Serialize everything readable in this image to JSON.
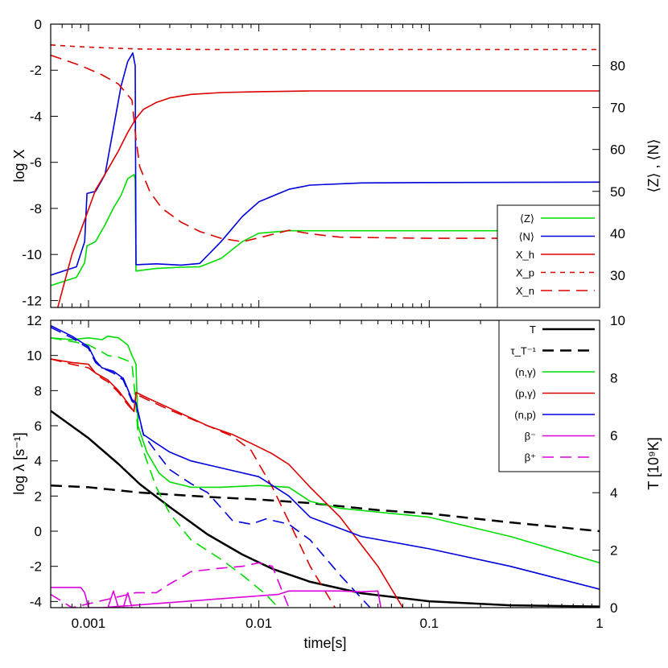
{
  "chart_data": [
    {
      "type": "line",
      "panel": "top",
      "xscale": "log",
      "xlim": [
        0.0006,
        1
      ],
      "x_ticks": [
        0.001,
        0.01,
        0.1,
        1
      ],
      "x_tick_labels": [
        "0.001",
        "0.01",
        "0.1",
        "1"
      ],
      "ylabel": "log X",
      "ylim": [
        -12.3,
        0
      ],
      "y_ticks": [
        0,
        -2,
        -4,
        -6,
        -8,
        -10,
        -12
      ],
      "y_tick_labels": [
        "0",
        "-2",
        "-4",
        "-6",
        "-8",
        "-10",
        "-12"
      ],
      "y2label": "⟨Z⟩ , ⟨N⟩",
      "y2lim": [
        22.3,
        89.9
      ],
      "y2_ticks": [
        30,
        40,
        50,
        60,
        70,
        80
      ],
      "y2_tick_labels": [
        "30",
        "40",
        "50",
        "60",
        "70",
        "80"
      ],
      "legend_position": "bottom-right",
      "series": [
        {
          "key": "Z",
          "name": "⟨Z⟩",
          "axis": "right",
          "color": "#00dd00",
          "dash": "solid",
          "x": [
            0.0006,
            0.00085,
            0.00095,
            0.00098,
            0.0011,
            0.00125,
            0.0014,
            0.00155,
            0.0017,
            0.00185,
            0.00188,
            0.0019,
            0.0025,
            0.0035,
            0.0045,
            0.006,
            0.008,
            0.01,
            0.015,
            0.03,
            0.1,
            1
          ],
          "y": [
            27.5,
            29.5,
            33,
            37,
            38,
            42,
            46,
            49,
            53,
            54,
            53,
            31,
            31.6,
            31.9,
            32,
            34,
            38,
            40,
            40.6,
            40.6,
            40.6,
            40.6
          ]
        },
        {
          "key": "N",
          "name": "⟨N⟩",
          "axis": "right",
          "color": "#0000dd",
          "dash": "solid",
          "x": [
            0.0006,
            0.00085,
            0.00095,
            0.00098,
            0.0011,
            0.00125,
            0.0014,
            0.00155,
            0.0017,
            0.00182,
            0.00188,
            0.0019,
            0.0025,
            0.0035,
            0.0045,
            0.006,
            0.008,
            0.01,
            0.015,
            0.02,
            0.04,
            0.1,
            1
          ],
          "y": [
            30,
            32,
            38,
            49.5,
            50,
            54,
            65,
            75,
            81,
            83,
            80,
            32.5,
            32.7,
            32.4,
            32.8,
            38,
            44,
            47.5,
            50.5,
            51.5,
            52,
            52.1,
            52.2
          ]
        },
        {
          "key": "Xh",
          "name": "X_h",
          "axis": "left",
          "color": "#dd0000",
          "dash": "solid",
          "x": [
            0.00066,
            0.0008,
            0.00095,
            0.0011,
            0.0013,
            0.0015,
            0.0017,
            0.0019,
            0.0021,
            0.0025,
            0.003,
            0.004,
            0.006,
            0.01,
            0.02,
            0.05,
            0.2,
            1
          ],
          "y": [
            -12.3,
            -10,
            -8.5,
            -7.2,
            -6.3,
            -5.5,
            -4.7,
            -4.1,
            -3.7,
            -3.4,
            -3.2,
            -3.05,
            -2.97,
            -2.93,
            -2.9,
            -2.9,
            -2.9,
            -2.9
          ]
        },
        {
          "key": "Xp",
          "name": "X_p",
          "axis": "left",
          "color": "#dd0000",
          "dash": "short",
          "x": [
            0.0006,
            0.0008,
            0.001,
            0.0015,
            0.002,
            0.005,
            0.01,
            0.1,
            1
          ],
          "y": [
            -0.9,
            -0.96,
            -1.0,
            -1.05,
            -1.08,
            -1.1,
            -1.1,
            -1.1,
            -1.1
          ]
        },
        {
          "key": "Xn",
          "name": "X_n",
          "axis": "left",
          "color": "#dd0000",
          "dash": "long",
          "x": [
            0.0006,
            0.0009,
            0.0012,
            0.0015,
            0.0018,
            0.0019,
            0.002,
            0.0023,
            0.0027,
            0.0035,
            0.0045,
            0.006,
            0.008,
            0.011,
            0.015,
            0.02,
            0.03,
            0.1,
            1
          ],
          "y": [
            -1.35,
            -1.8,
            -2.2,
            -2.6,
            -3.3,
            -5.0,
            -6.2,
            -7.3,
            -8.0,
            -8.6,
            -9.0,
            -9.3,
            -9.45,
            -9.2,
            -8.95,
            -9.1,
            -9.25,
            -9.3,
            -9.3
          ]
        }
      ]
    },
    {
      "type": "line",
      "panel": "bottom",
      "xscale": "log",
      "xlim": [
        0.0006,
        1
      ],
      "x_ticks": [
        0.001,
        0.01,
        0.1,
        1
      ],
      "x_tick_labels": [
        "0.001",
        "0.01",
        "0.1",
        "1"
      ],
      "xlabel": "time[s]",
      "ylabel": "log λ [s⁻¹]",
      "ylim": [
        -4.35,
        12
      ],
      "y_ticks": [
        12,
        10,
        8,
        6,
        4,
        2,
        0,
        -2,
        -4
      ],
      "y_tick_labels": [
        "12",
        "10",
        "8",
        "6",
        "4",
        "2",
        "0",
        "-2",
        "-4"
      ],
      "y2label": "T [10⁹K]",
      "y2lim": [
        0,
        10
      ],
      "y2_ticks": [
        0,
        2,
        4,
        6,
        8,
        10
      ],
      "y2_tick_labels": [
        "0",
        "2",
        "4",
        "6",
        "8",
        "10"
      ],
      "legend_position": "top-right",
      "series": [
        {
          "key": "T",
          "name": "T",
          "axis": "right",
          "color": "#000000",
          "dash": "solid",
          "width": 2.5,
          "x": [
            0.0006,
            0.001,
            0.0015,
            0.002,
            0.003,
            0.005,
            0.008,
            0.012,
            0.02,
            0.04,
            0.1,
            0.3,
            1
          ],
          "y": [
            6.85,
            5.9,
            5.0,
            4.3,
            3.5,
            2.55,
            1.85,
            1.35,
            0.9,
            0.5,
            0.22,
            0.08,
            0.04
          ]
        },
        {
          "key": "tau",
          "name": "τ_T⁻¹",
          "axis": "left",
          "color": "#000000",
          "dash": "long",
          "width": 2.5,
          "x": [
            0.0006,
            0.001,
            0.002,
            0.005,
            0.01,
            0.02,
            0.05,
            0.1,
            0.3,
            1
          ],
          "y": [
            2.6,
            2.5,
            2.2,
            1.95,
            1.8,
            1.6,
            1.2,
            1.0,
            0.5,
            0
          ]
        },
        {
          "key": "ng",
          "name": "(n,γ)",
          "axis": "left",
          "color": "#00dd00",
          "dash": "solid",
          "x": [
            0.0006,
            0.0008,
            0.001,
            0.0012,
            0.0013,
            0.0015,
            0.0017,
            0.0018,
            0.0019,
            0.00195,
            0.0022,
            0.0026,
            0.003,
            0.004,
            0.006,
            0.01,
            0.015,
            0.02,
            0.03,
            0.1,
            0.3,
            1
          ],
          "y": [
            11.0,
            10.9,
            11.0,
            10.9,
            11.1,
            11.0,
            10.6,
            10.0,
            9.5,
            6.0,
            4.5,
            3.3,
            2.8,
            2.5,
            2.5,
            2.6,
            2.5,
            1.7,
            1.3,
            0.8,
            -0.3,
            -1.8
          ]
        },
        {
          "key": "ng_d",
          "name": "(n,γ) dashed",
          "axis": "left",
          "color": "#00dd00",
          "dash": "long",
          "legend": false,
          "x": [
            0.0006,
            0.0008,
            0.001,
            0.0012,
            0.0013,
            0.0015,
            0.0017,
            0.0018,
            0.0019,
            0.00195,
            0.0022,
            0.0025,
            0.003,
            0.004,
            0.006,
            0.008,
            0.011,
            0.013
          ],
          "y": [
            11.0,
            10.8,
            10.6,
            10.2,
            10.0,
            9.9,
            9.7,
            9.5,
            7.2,
            5.5,
            4.0,
            2.5,
            1.0,
            -0.5,
            -1.6,
            -2.5,
            -3.6,
            -4.35
          ]
        },
        {
          "key": "pg",
          "name": "(p,γ)",
          "axis": "left",
          "color": "#dd0000",
          "dash": "solid",
          "x": [
            0.0006,
            0.0008,
            0.001,
            0.0011,
            0.0012,
            0.0013,
            0.0015,
            0.0017,
            0.00185,
            0.0019,
            0.0022,
            0.003,
            0.005,
            0.007,
            0.009,
            0.012,
            0.015,
            0.02,
            0.03,
            0.05,
            0.07
          ],
          "y": [
            9.8,
            9.6,
            9.5,
            9.0,
            8.8,
            8.6,
            8.0,
            7.3,
            6.8,
            7.9,
            7.6,
            7.0,
            6.0,
            5.5,
            5.0,
            4.4,
            3.8,
            2.5,
            0.8,
            -2.0,
            -4.35
          ]
        },
        {
          "key": "pg_d",
          "name": "(p,γ) dashed",
          "axis": "left",
          "color": "#dd0000",
          "dash": "long",
          "legend": false,
          "x": [
            0.0006,
            0.0008,
            0.001,
            0.0011,
            0.0012,
            0.0013,
            0.0015,
            0.0017,
            0.00185,
            0.0019,
            0.0022,
            0.003,
            0.005,
            0.007,
            0.009,
            0.012,
            0.016,
            0.02,
            0.028
          ],
          "y": [
            9.8,
            9.5,
            9.3,
            9.0,
            8.7,
            8.5,
            7.9,
            7.2,
            6.8,
            7.8,
            7.5,
            6.9,
            6.0,
            5.4,
            4.6,
            2.5,
            0,
            -2.0,
            -4.35
          ]
        },
        {
          "key": "np",
          "name": "(n,p)",
          "axis": "left",
          "color": "#0000dd",
          "dash": "solid",
          "x": [
            0.0006,
            0.0008,
            0.001,
            0.0011,
            0.0012,
            0.0014,
            0.0016,
            0.0018,
            0.0019,
            0.0021,
            0.0025,
            0.003,
            0.004,
            0.006,
            0.01,
            0.015,
            0.02,
            0.04,
            0.1,
            0.3,
            1
          ],
          "y": [
            11.7,
            11.1,
            10.5,
            9.7,
            9.3,
            9.1,
            8.7,
            7.5,
            7.3,
            5.5,
            5.0,
            4.5,
            4.0,
            3.6,
            3.1,
            2.0,
            0.8,
            -0.3,
            -1.0,
            -2.0,
            -3.3
          ]
        },
        {
          "key": "np_d",
          "name": "(n,p) dashed",
          "axis": "left",
          "color": "#0000dd",
          "dash": "long",
          "legend": false,
          "x": [
            0.0006,
            0.0008,
            0.001,
            0.0011,
            0.0012,
            0.0014,
            0.0016,
            0.0018,
            0.0019,
            0.0021,
            0.0025,
            0.003,
            0.004,
            0.005,
            0.007,
            0.009,
            0.011,
            0.015,
            0.02,
            0.03,
            0.045
          ],
          "y": [
            11.6,
            11.0,
            10.4,
            9.6,
            9.3,
            9.0,
            8.6,
            7.4,
            7.2,
            5.5,
            4.5,
            3.5,
            2.7,
            2.2,
            0.6,
            0.4,
            0.7,
            0.4,
            -0.5,
            -2.5,
            -4.35
          ]
        },
        {
          "key": "bm",
          "name": "β⁻",
          "axis": "left",
          "color": "#dd00dd",
          "dash": "solid",
          "x": [
            0.0006,
            0.0009,
            0.00095,
            0.001,
            0.0013,
            0.0014,
            0.0015,
            0.0016,
            0.0017,
            0.0018,
            0.0012,
            0.013,
            0.015,
            0.02,
            0.03,
            0.04,
            0.05,
            0.052
          ],
          "y": [
            -3.2,
            -3.2,
            -3.5,
            -4.35,
            -4.35,
            -3.4,
            -4.35,
            -4.35,
            -3.5,
            -4.35,
            -4.35,
            -3.6,
            -3.4,
            -3.4,
            -3.4,
            -3.45,
            -3.4,
            -4.35
          ]
        },
        {
          "key": "bp",
          "name": "β⁺",
          "axis": "left",
          "color": "#dd00dd",
          "dash": "long",
          "x": [
            0.0006,
            0.0008,
            0.0019,
            0.0025,
            0.003,
            0.004,
            0.006,
            0.008,
            0.01,
            0.012,
            0.015
          ],
          "y": [
            -3.6,
            -4.35,
            -3.5,
            -3.5,
            -3.0,
            -2.3,
            -2.1,
            -2.0,
            -1.8,
            -2.0,
            -4.35
          ]
        }
      ]
    }
  ]
}
